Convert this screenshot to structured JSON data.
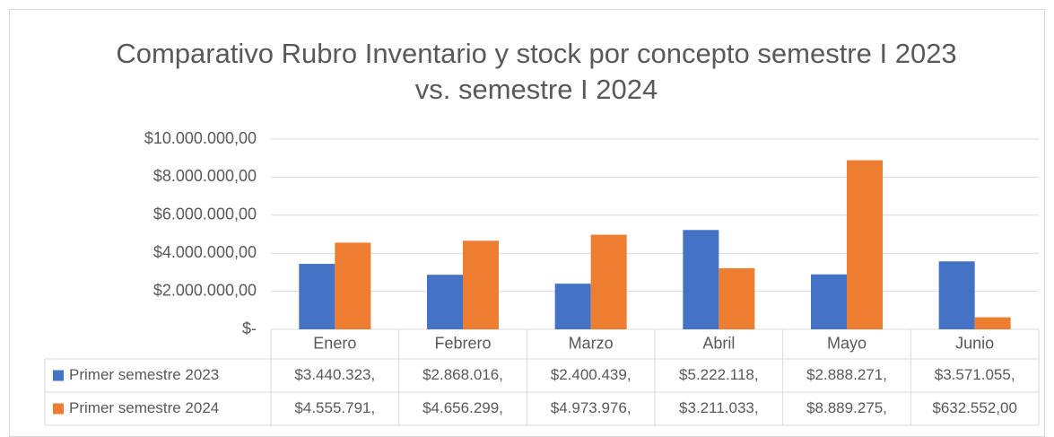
{
  "chart_data": {
    "type": "bar",
    "title": "Comparativo Rubro Inventario y stock por concepto semestre I 2023 vs. semestre I 2024",
    "categories": [
      "Enero",
      "Febrero",
      "Marzo",
      "Abril",
      "Mayo",
      "Junio"
    ],
    "series": [
      {
        "name": "Primer semestre 2023",
        "color": "#4472c4",
        "values": [
          3440323,
          2868016,
          2400439,
          5222118,
          2888271,
          3571055
        ],
        "value_labels": [
          "$3.440.323,",
          "$2.868.016,",
          "$2.400.439,",
          "$5.222.118,",
          "$2.888.271,",
          "$3.571.055,"
        ]
      },
      {
        "name": "Primer semestre 2024",
        "color": "#ed7d31",
        "values": [
          4555791,
          4656299,
          4973976,
          3211033,
          8889275,
          632552
        ],
        "value_labels": [
          "$4.555.791,",
          "$4.656.299,",
          "$4.973.976,",
          "$3.211.033,",
          "$8.889.275,",
          "$632.552,00"
        ]
      }
    ],
    "ylim": [
      0,
      10000000
    ],
    "yticks": [
      {
        "value": 0,
        "label": "$-"
      },
      {
        "value": 2000000,
        "label": "$2.000.000,00"
      },
      {
        "value": 4000000,
        "label": "$4.000.000,00"
      },
      {
        "value": 6000000,
        "label": "$6.000.000,00"
      },
      {
        "value": 8000000,
        "label": "$8.000.000,00"
      },
      {
        "value": 10000000,
        "label": "$10.000.000,00"
      }
    ],
    "grid": true
  }
}
